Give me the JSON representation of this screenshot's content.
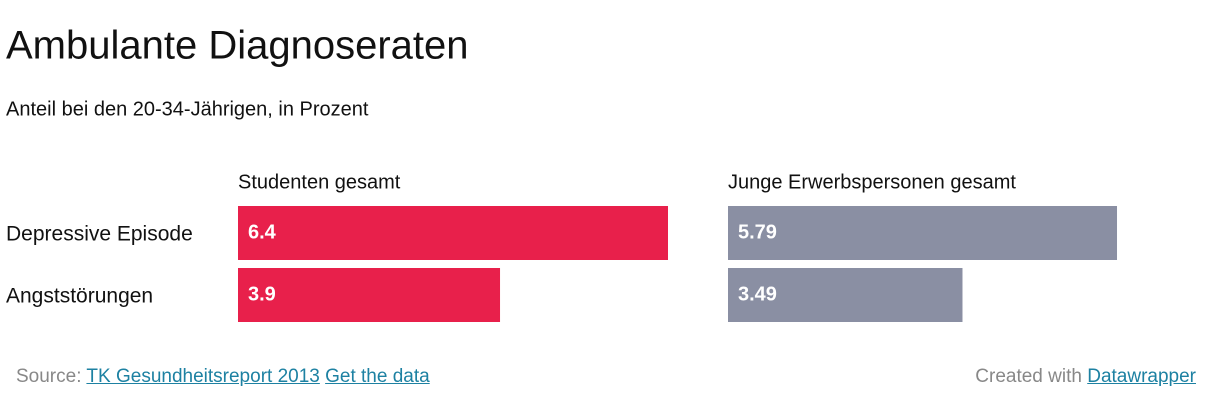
{
  "chart_data": {
    "type": "bar",
    "orientation": "horizontal",
    "title": "Ambulante Diagnoseraten",
    "subtitle": "Anteil bei den 20-34-Jährigen, in Prozent",
    "categories": [
      "Depressive Episode",
      "Angststörungen"
    ],
    "series": [
      {
        "name": "Studenten gesamt",
        "color": "#e8204b",
        "values": [
          6.4,
          3.9
        ]
      },
      {
        "name": "Junge Erwerbspersonen gesamt",
        "color": "#8a8fa3",
        "values": [
          5.79,
          3.49
        ]
      }
    ]
  },
  "footer": {
    "source_label": "Source:",
    "source_link": "TK Gesundheitsreport 2013",
    "data_link": "Get the data",
    "credit_label": "Created with",
    "credit_link": "Datawrapper"
  }
}
